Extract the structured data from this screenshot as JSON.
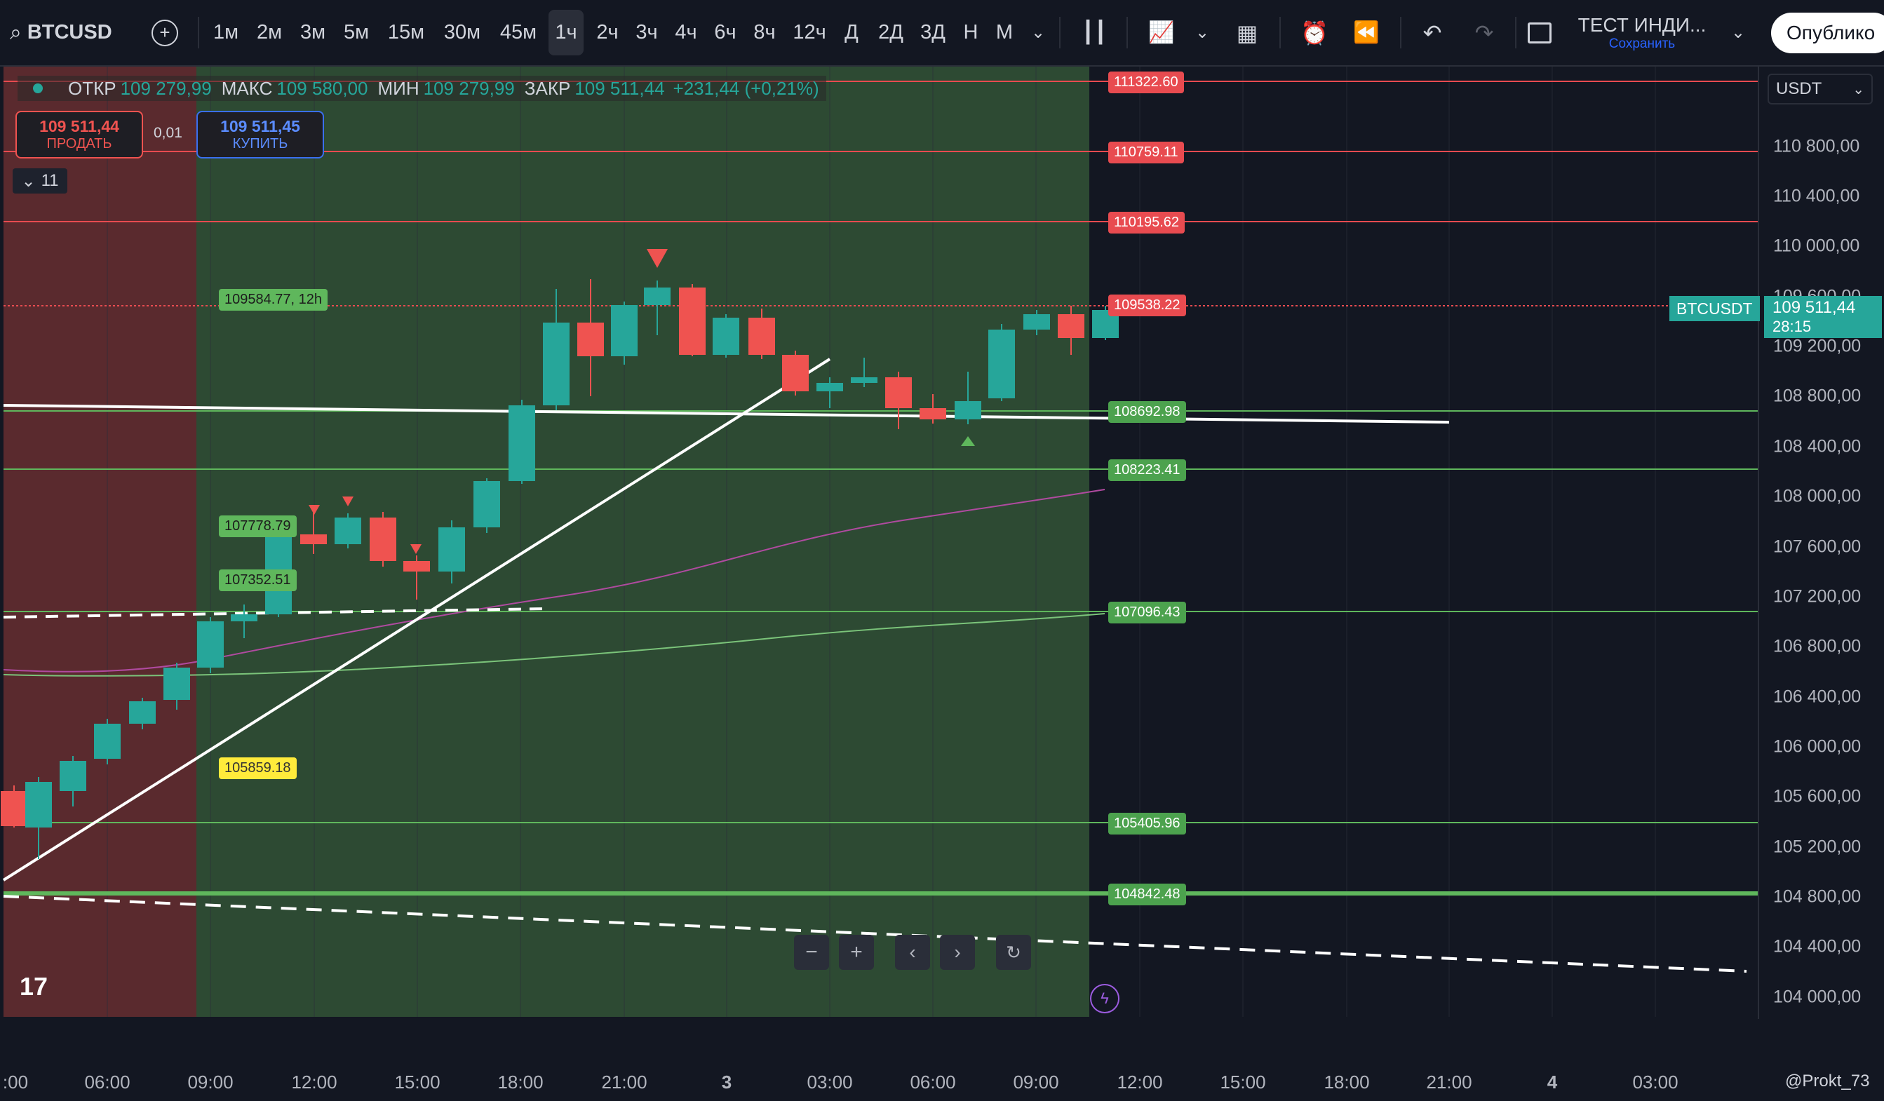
{
  "toolbar": {
    "symbol": "BTCUSD",
    "intervals": [
      "1м",
      "2м",
      "3м",
      "5м",
      "15м",
      "30м",
      "45м",
      "1ч",
      "2ч",
      "3ч",
      "4ч",
      "6ч",
      "8ч",
      "12ч",
      "Д",
      "2Д",
      "3Д",
      "Н",
      "М"
    ],
    "active_interval": "1ч",
    "layout_name": "ТЕСТ ИНДИ...",
    "save_label": "Сохранить",
    "publish_label": "Опублико"
  },
  "legend": {
    "open_label": "ОТКР",
    "open": "109 279,99",
    "high_label": "МАКС",
    "high": "109 580,00",
    "low_label": "МИН",
    "low": "109 279,99",
    "close_label": "ЗАКР",
    "close": "109 511,44",
    "change": "+231,44 (+0,21%)"
  },
  "trade": {
    "sell_price": "109 511,44",
    "sell_label": "ПРОДАТЬ",
    "spread": "0,01",
    "buy_price": "109 511,45",
    "buy_label": "КУПИТЬ"
  },
  "collapse_count": "11",
  "currency": "USDT",
  "price_axis": [
    "110 800,00",
    "110 400,00",
    "110 000,00",
    "109 600,00",
    "109 200,00",
    "108 800,00",
    "108 400,00",
    "108 000,00",
    "107 600,00",
    "107 200,00",
    "106 800,00",
    "106 400,00",
    "106 000,00",
    "105 600,00",
    "105 200,00",
    "104 800,00",
    "104 400,00",
    "104 000,00"
  ],
  "time_axis": [
    ":00",
    "06:00",
    "09:00",
    "12:00",
    "15:00",
    "18:00",
    "21:00",
    "3",
    "03:00",
    "06:00",
    "09:00",
    "12:00",
    "15:00",
    "18:00",
    "21:00",
    "4",
    "03:00"
  ],
  "current_price": {
    "symbol": "BTCUSDT",
    "price": "109 511,44",
    "countdown": "28:15"
  },
  "levels": [
    {
      "label": "111322.60",
      "kind": "red"
    },
    {
      "label": "110759.11",
      "kind": "red"
    },
    {
      "label": "110195.62",
      "kind": "red"
    },
    {
      "label": "109538.22",
      "kind": "red"
    },
    {
      "label": "108692.98",
      "kind": "green"
    },
    {
      "label": "108223.41",
      "kind": "green"
    },
    {
      "label": "107096.43",
      "kind": "green"
    },
    {
      "label": "105405.96",
      "kind": "green"
    },
    {
      "label": "104842.48",
      "kind": "green"
    }
  ],
  "markers": [
    {
      "label": "109584.77, 12h"
    },
    {
      "label": "107778.79"
    },
    {
      "label": "107352.51"
    },
    {
      "label": "105859.18"
    }
  ],
  "author": "@Prokt_73",
  "colors": {
    "up": "#26a69a",
    "down": "#ef5350",
    "red_zone": "#5a2a2e",
    "green_zone": "#2a4a30",
    "bg": "#131722"
  }
}
